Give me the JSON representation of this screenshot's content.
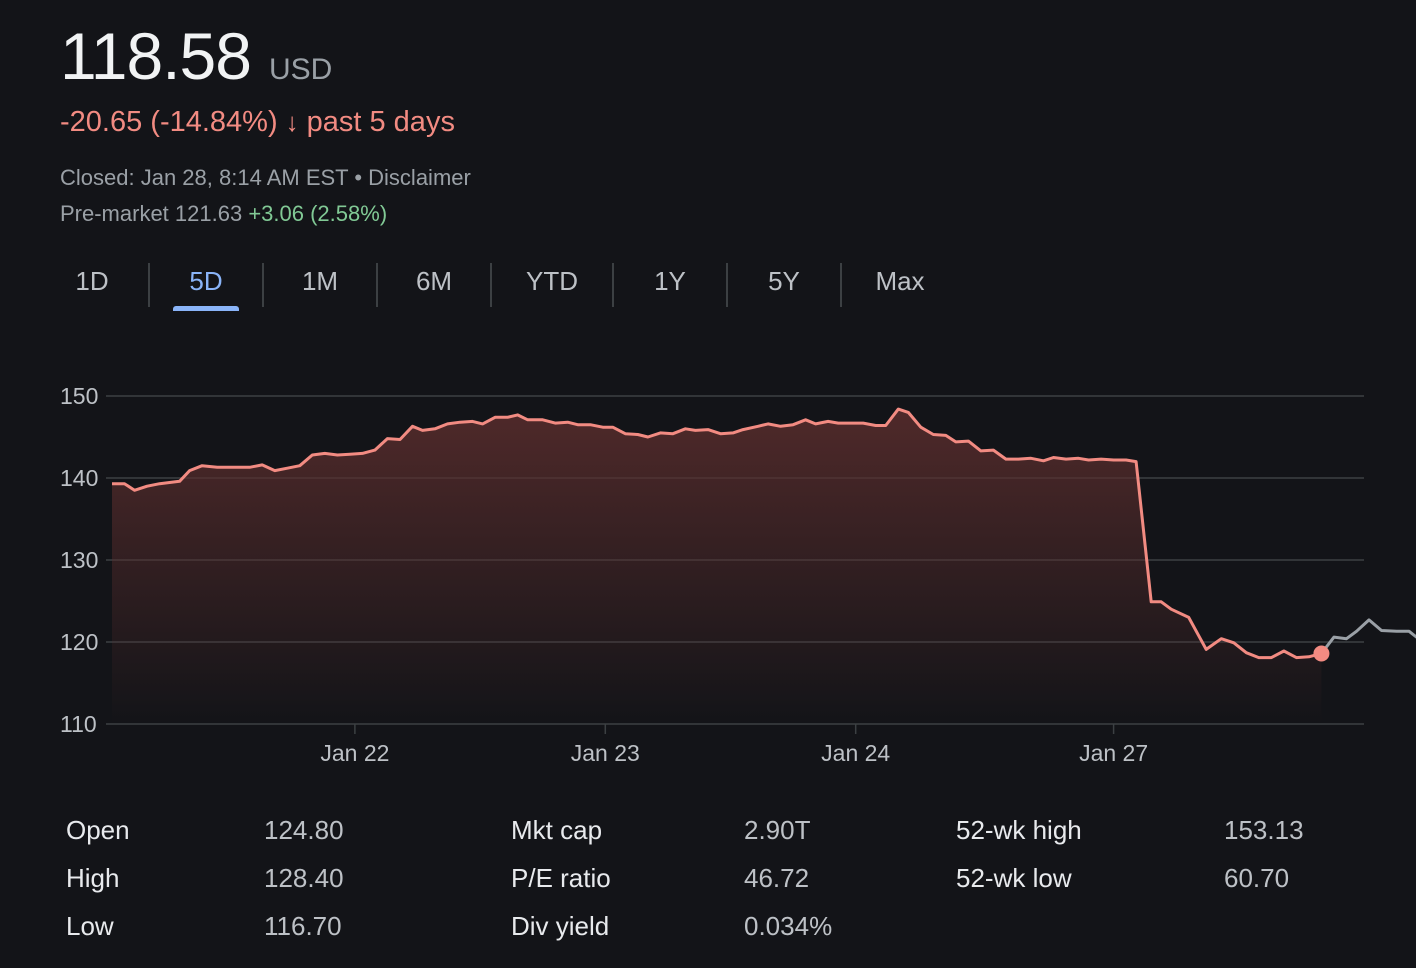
{
  "quote": {
    "price": "118.58",
    "currency": "USD",
    "change": "-20.65 (-14.84%)",
    "change_arrow": "↓",
    "change_period": "past 5 days",
    "closed_text": "Closed: Jan 28, 8:14 AM EST",
    "separator": "•",
    "disclaimer": "Disclaimer",
    "premarket_label": "Pre-market 121.63",
    "premarket_change": "+3.06 (2.58%)"
  },
  "tabs": [
    {
      "label": "1D",
      "active": false
    },
    {
      "label": "5D",
      "active": true
    },
    {
      "label": "1M",
      "active": false
    },
    {
      "label": "6M",
      "active": false
    },
    {
      "label": "YTD",
      "active": false
    },
    {
      "label": "1Y",
      "active": false
    },
    {
      "label": "5Y",
      "active": false
    },
    {
      "label": "Max",
      "active": false
    }
  ],
  "chart_data": {
    "type": "area",
    "title": "",
    "xlabel": "",
    "ylabel": "",
    "ylim": [
      110,
      150
    ],
    "y_ticks": [
      150,
      140,
      130,
      120,
      110
    ],
    "x_range": [
      0,
      5
    ],
    "x_ticks": [
      {
        "label": "Jan 22",
        "x": 0.97
      },
      {
        "label": "Jan 23",
        "x": 1.97
      },
      {
        "label": "Jan 24",
        "x": 2.97
      },
      {
        "label": "Jan 27",
        "x": 4.0
      }
    ],
    "grid": true,
    "colors": {
      "line": "#f28b82",
      "premarket": "#9aa0a6",
      "fill_top": "#5a2d2d",
      "grid": "#3c4043",
      "marker": "#f28b82"
    },
    "series": [
      {
        "values": [
          [
            0.0,
            139.3
          ],
          [
            0.05,
            139.3
          ],
          [
            0.09,
            138.5
          ],
          [
            0.14,
            139.0
          ],
          [
            0.19,
            139.3
          ],
          [
            0.27,
            139.6
          ],
          [
            0.31,
            140.9
          ],
          [
            0.36,
            141.5
          ],
          [
            0.42,
            141.3
          ],
          [
            0.49,
            141.3
          ],
          [
            0.55,
            141.3
          ],
          [
            0.6,
            141.6
          ],
          [
            0.65,
            140.9
          ],
          [
            0.7,
            141.2
          ],
          [
            0.75,
            141.5
          ],
          [
            0.8,
            142.8
          ],
          [
            0.85,
            143.0
          ],
          [
            0.9,
            142.8
          ],
          [
            0.95,
            142.9
          ],
          [
            1.0,
            143.0
          ],
          [
            1.05,
            143.4
          ],
          [
            1.1,
            144.8
          ],
          [
            1.15,
            144.7
          ],
          [
            1.2,
            146.3
          ],
          [
            1.24,
            145.8
          ],
          [
            1.29,
            146.0
          ],
          [
            1.34,
            146.6
          ],
          [
            1.39,
            146.8
          ],
          [
            1.44,
            146.9
          ],
          [
            1.48,
            146.6
          ],
          [
            1.53,
            147.4
          ],
          [
            1.58,
            147.4
          ],
          [
            1.62,
            147.7
          ],
          [
            1.66,
            147.1
          ],
          [
            1.72,
            147.1
          ],
          [
            1.77,
            146.7
          ],
          [
            1.82,
            146.8
          ],
          [
            1.86,
            146.5
          ],
          [
            1.91,
            146.5
          ],
          [
            1.96,
            146.2
          ],
          [
            2.0,
            146.2
          ],
          [
            2.05,
            145.4
          ],
          [
            2.1,
            145.3
          ],
          [
            2.14,
            145.0
          ],
          [
            2.19,
            145.5
          ],
          [
            2.24,
            145.4
          ],
          [
            2.29,
            146.0
          ],
          [
            2.33,
            145.8
          ],
          [
            2.38,
            145.9
          ],
          [
            2.43,
            145.4
          ],
          [
            2.48,
            145.5
          ],
          [
            2.52,
            145.9
          ],
          [
            2.58,
            146.3
          ],
          [
            2.62,
            146.6
          ],
          [
            2.67,
            146.3
          ],
          [
            2.72,
            146.5
          ],
          [
            2.77,
            147.1
          ],
          [
            2.81,
            146.6
          ],
          [
            2.86,
            146.9
          ],
          [
            2.9,
            146.7
          ],
          [
            2.95,
            146.7
          ],
          [
            3.0,
            146.7
          ],
          [
            3.05,
            146.4
          ],
          [
            3.09,
            146.4
          ],
          [
            3.14,
            148.4
          ],
          [
            3.18,
            148.0
          ],
          [
            3.23,
            146.2
          ],
          [
            3.28,
            145.3
          ],
          [
            3.33,
            145.2
          ],
          [
            3.37,
            144.4
          ],
          [
            3.42,
            144.5
          ],
          [
            3.47,
            143.3
          ],
          [
            3.52,
            143.4
          ],
          [
            3.57,
            142.3
          ],
          [
            3.62,
            142.3
          ],
          [
            3.67,
            142.4
          ],
          [
            3.72,
            142.1
          ],
          [
            3.76,
            142.5
          ],
          [
            3.81,
            142.3
          ],
          [
            3.86,
            142.4
          ],
          [
            3.9,
            142.2
          ],
          [
            3.95,
            142.3
          ],
          [
            4.0,
            142.2
          ],
          [
            4.05,
            142.2
          ],
          [
            4.09,
            142.0
          ],
          [
            4.15,
            124.9
          ],
          [
            4.19,
            124.9
          ],
          [
            4.23,
            124.0
          ],
          [
            4.3,
            123.0
          ],
          [
            4.37,
            119.1
          ],
          [
            4.43,
            120.4
          ],
          [
            4.48,
            119.9
          ],
          [
            4.53,
            118.7
          ],
          [
            4.58,
            118.1
          ],
          [
            4.63,
            118.1
          ],
          [
            4.68,
            118.9
          ],
          [
            4.73,
            118.1
          ],
          [
            4.78,
            118.2
          ],
          [
            4.83,
            118.6
          ]
        ]
      },
      {
        "values": [
          [
            4.83,
            118.6
          ],
          [
            4.88,
            120.6
          ],
          [
            4.93,
            120.4
          ],
          [
            4.97,
            121.3
          ],
          [
            5.02,
            122.7
          ],
          [
            5.07,
            121.4
          ],
          [
            5.13,
            121.3
          ],
          [
            5.18,
            121.3
          ],
          [
            5.23,
            120.1
          ]
        ]
      }
    ]
  },
  "stats": {
    "col1": [
      {
        "label": "Open",
        "value": "124.80"
      },
      {
        "label": "High",
        "value": "128.40"
      },
      {
        "label": "Low",
        "value": "116.70"
      }
    ],
    "col2": [
      {
        "label": "Mkt cap",
        "value": "2.90T"
      },
      {
        "label": "P/E ratio",
        "value": "46.72"
      },
      {
        "label": "Div yield",
        "value": "0.034%"
      }
    ],
    "col3": [
      {
        "label": "52-wk high",
        "value": "153.13"
      },
      {
        "label": "52-wk low",
        "value": "60.70"
      }
    ]
  }
}
